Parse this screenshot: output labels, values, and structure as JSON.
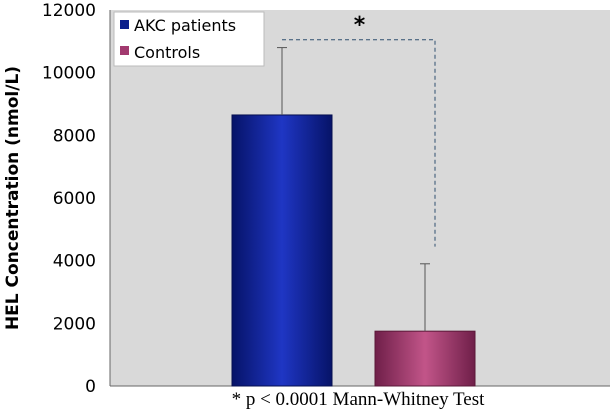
{
  "chart_data": {
    "type": "bar",
    "categories": [
      "AKC patients",
      "Controls"
    ],
    "values": [
      8650,
      1750
    ],
    "error_upper": [
      10800,
      3900
    ],
    "ylabel": "HEL Concentration (nmol/L)",
    "xlabel": "",
    "ylim": [
      0,
      12000
    ],
    "yticks": [
      0,
      2000,
      4000,
      6000,
      8000,
      10000,
      12000
    ],
    "legend": {
      "position": "top-left",
      "entries": [
        "AKC patients",
        "Controls"
      ]
    },
    "significance": {
      "marker": "*",
      "between": [
        "AKC patients",
        "Controls"
      ],
      "note": "* p < 0.0001 Mann-Whitney Test"
    },
    "grid": false,
    "colors": {
      "plot_background": "#d9d9d9",
      "series": [
        "#0b1f8c",
        "#a23a6f"
      ]
    }
  }
}
